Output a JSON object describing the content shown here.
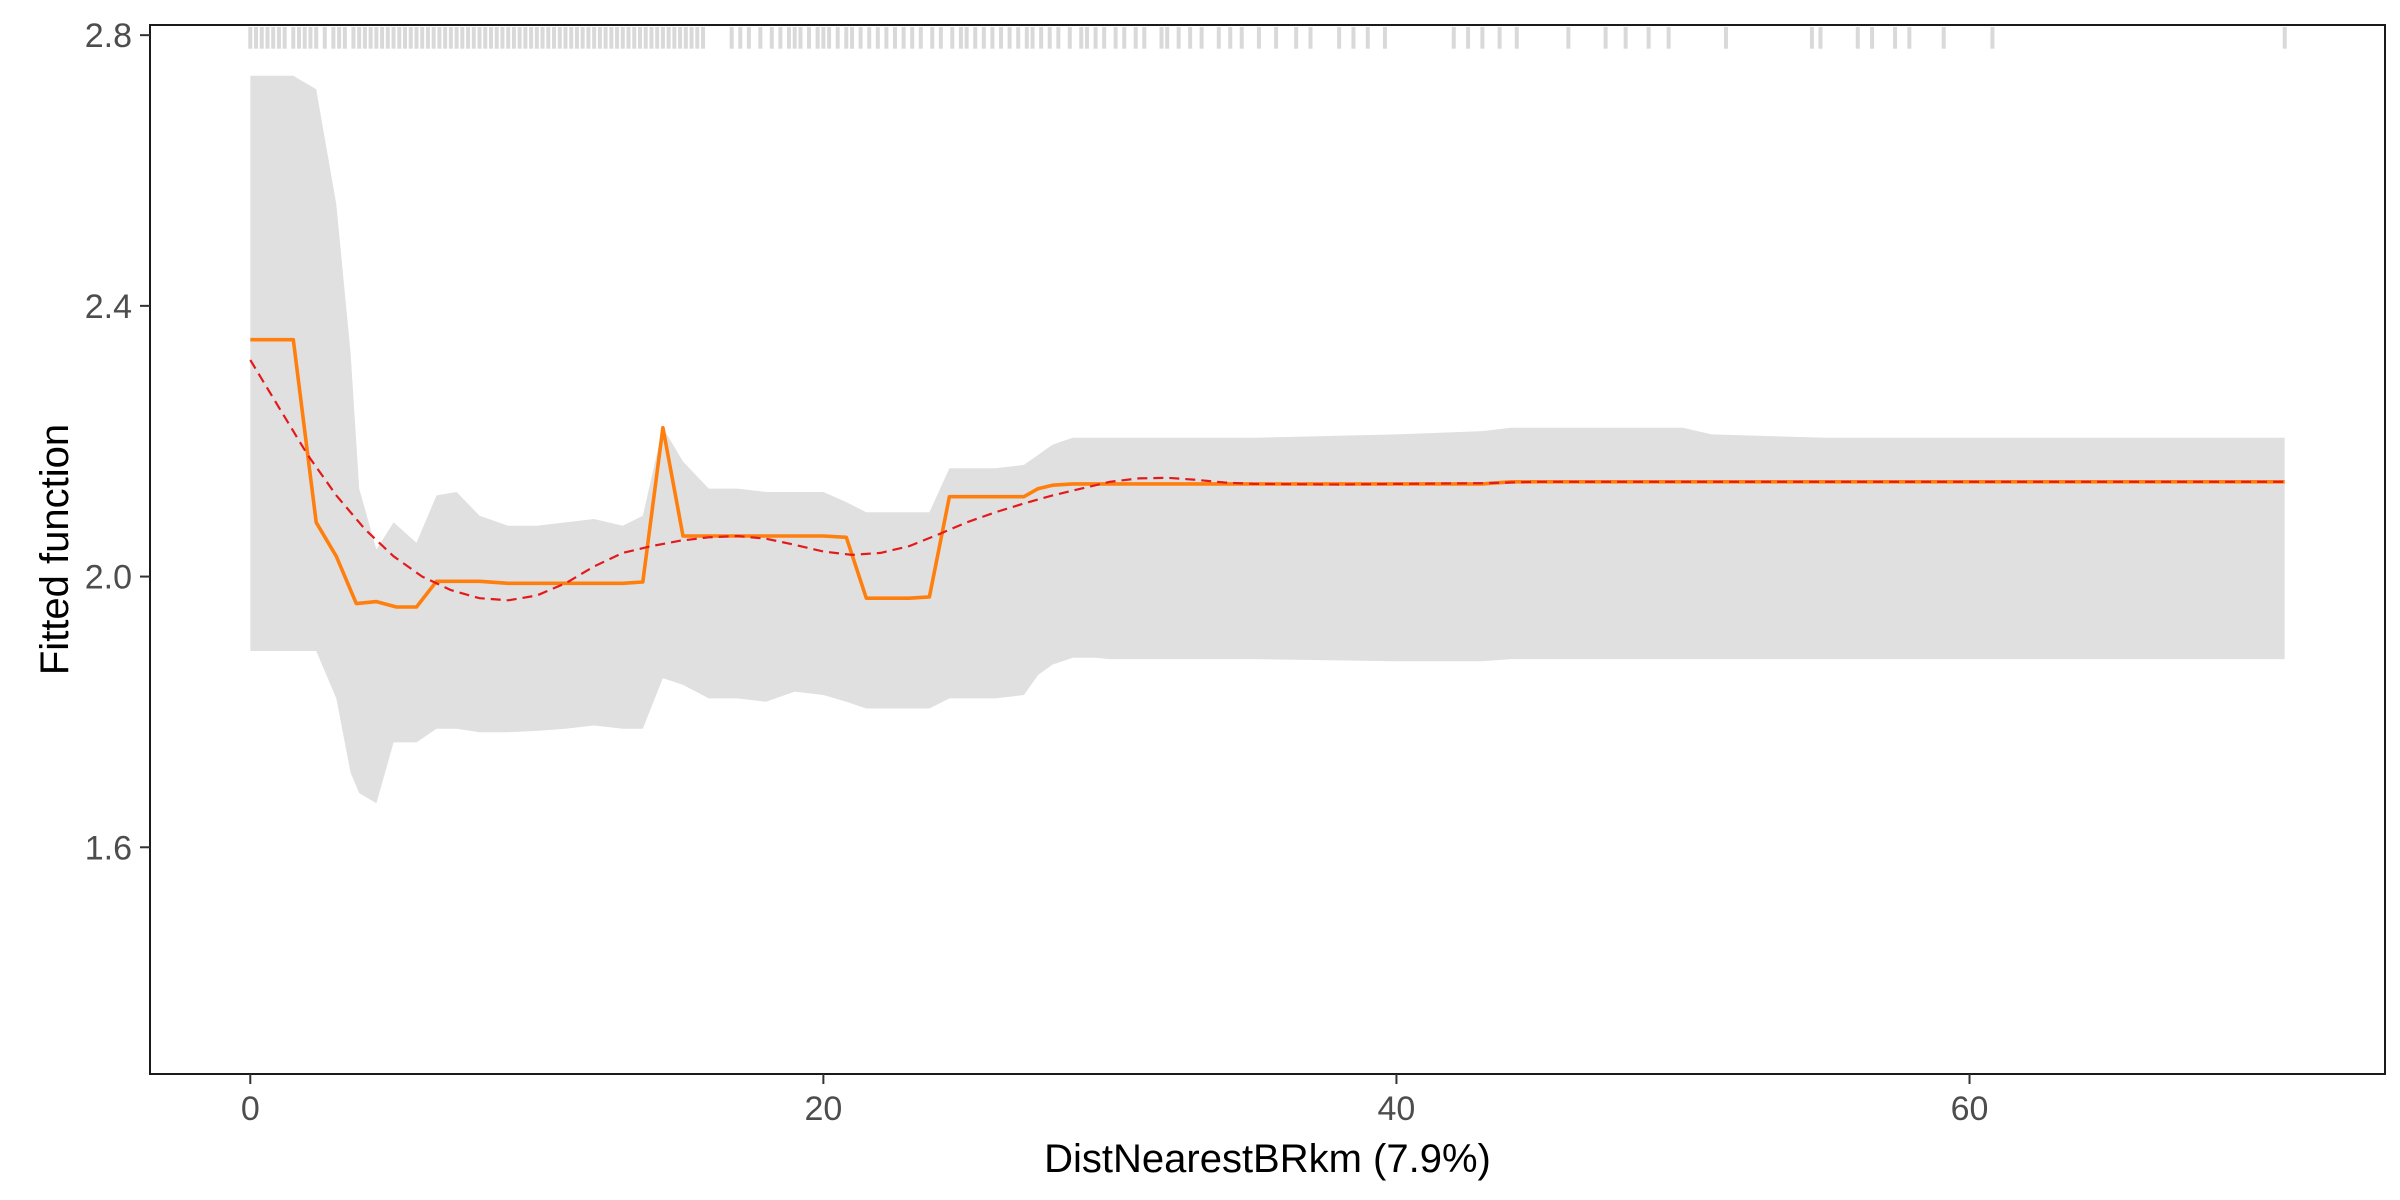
{
  "chart_data": {
    "type": "line",
    "title": "",
    "xlabel": "DistNearestBRkm  (7.9%)",
    "ylabel": "Fitted function",
    "xlim": [
      -3.5,
      74.5
    ],
    "ylim": [
      1.265,
      2.815
    ],
    "x_ticks": [
      0,
      20,
      40,
      60
    ],
    "y_ticks": [
      1.6,
      2.0,
      2.4,
      2.8
    ],
    "x_tick_labels": [
      "0",
      "20",
      "40",
      "60"
    ],
    "y_tick_labels": [
      "1.6",
      "2.0",
      "2.4",
      "2.8"
    ],
    "grid": false,
    "legend": "none",
    "colors": {
      "fitted": "#ff7f0e",
      "smooth": "#e31a1c",
      "band": "#e0e0e0",
      "rug": "#d9d9d9",
      "frame": "#1a1a1a"
    },
    "series": [
      {
        "style": "solid",
        "x": [
          0,
          1.5,
          2.3,
          3.0,
          3.7,
          4.4,
          5.1,
          5.8,
          6.5,
          7.2,
          8.0,
          9.0,
          10.0,
          11.0,
          12.0,
          13.0,
          13.7,
          14.4,
          15.1,
          16.0,
          17.0,
          18.0,
          19.0,
          20.0,
          20.8,
          21.5,
          22.3,
          23.0,
          23.7,
          24.4,
          25.1,
          26.0,
          27.0,
          27.5,
          28.0,
          28.7,
          29.5,
          30.0,
          35.0,
          40.0,
          43.0,
          44.0,
          50.0,
          55.0,
          60.0,
          65.0,
          71.0
        ],
        "y": [
          2.35,
          2.35,
          2.08,
          2.03,
          1.96,
          1.963,
          1.955,
          1.955,
          1.993,
          1.993,
          1.993,
          1.99,
          1.99,
          1.99,
          1.99,
          1.99,
          1.992,
          2.22,
          2.06,
          2.06,
          2.06,
          2.06,
          2.06,
          2.06,
          2.058,
          1.968,
          1.968,
          1.968,
          1.97,
          2.118,
          2.118,
          2.118,
          2.118,
          2.13,
          2.135,
          2.137,
          2.137,
          2.137,
          2.137,
          2.137,
          2.137,
          2.14,
          2.14,
          2.14,
          2.14,
          2.14,
          2.14
        ]
      },
      {
        "style": "dashed",
        "x": [
          0,
          1,
          2,
          3,
          4,
          5,
          6,
          7,
          8,
          9,
          10,
          11,
          12,
          13,
          14,
          15,
          16,
          17,
          18,
          19,
          20,
          21,
          22,
          23,
          24,
          25,
          26,
          27,
          28,
          29,
          30,
          31,
          32,
          33,
          34,
          35,
          38,
          40,
          43,
          45,
          50,
          55,
          60,
          65,
          71
        ],
        "y": [
          2.32,
          2.25,
          2.18,
          2.12,
          2.07,
          2.03,
          2.0,
          1.98,
          1.968,
          1.965,
          1.972,
          1.99,
          2.015,
          2.035,
          2.045,
          2.053,
          2.058,
          2.06,
          2.056,
          2.047,
          2.037,
          2.032,
          2.035,
          2.045,
          2.062,
          2.08,
          2.095,
          2.108,
          2.12,
          2.13,
          2.14,
          2.145,
          2.146,
          2.143,
          2.139,
          2.137,
          2.136,
          2.137,
          2.138,
          2.14,
          2.14,
          2.14,
          2.14,
          2.14,
          2.14
        ]
      }
    ],
    "band": {
      "x": [
        0,
        1.5,
        2.3,
        3.0,
        3.5,
        3.8,
        4.4,
        5.0,
        5.8,
        6.5,
        7.2,
        8.0,
        9.0,
        10.0,
        11.0,
        12.0,
        13.0,
        13.7,
        14.4,
        15.1,
        16.0,
        17.0,
        18.0,
        19.0,
        20.0,
        20.8,
        21.5,
        22.3,
        23.0,
        23.7,
        24.4,
        25.1,
        26.0,
        27.0,
        27.5,
        28.0,
        28.7,
        29.5,
        30.0,
        35.0,
        40.0,
        43.0,
        44.0,
        50.0,
        51.0,
        55.0,
        60.0,
        65.0,
        71.0
      ],
      "upper": [
        2.74,
        2.74,
        2.72,
        2.55,
        2.33,
        2.13,
        2.04,
        2.08,
        2.05,
        2.12,
        2.125,
        2.09,
        2.075,
        2.075,
        2.08,
        2.085,
        2.075,
        2.09,
        2.22,
        2.17,
        2.13,
        2.13,
        2.125,
        2.125,
        2.125,
        2.11,
        2.095,
        2.095,
        2.095,
        2.095,
        2.16,
        2.16,
        2.16,
        2.165,
        2.18,
        2.195,
        2.205,
        2.205,
        2.205,
        2.205,
        2.21,
        2.215,
        2.22,
        2.22,
        2.21,
        2.205,
        2.205,
        2.205,
        2.205
      ],
      "lower": [
        1.89,
        1.89,
        1.89,
        1.82,
        1.71,
        1.68,
        1.665,
        1.755,
        1.755,
        1.775,
        1.775,
        1.77,
        1.77,
        1.772,
        1.775,
        1.78,
        1.775,
        1.775,
        1.85,
        1.84,
        1.82,
        1.82,
        1.815,
        1.83,
        1.825,
        1.815,
        1.805,
        1.805,
        1.805,
        1.805,
        1.82,
        1.82,
        1.82,
        1.825,
        1.855,
        1.87,
        1.88,
        1.88,
        1.878,
        1.878,
        1.875,
        1.875,
        1.878,
        1.878,
        1.878,
        1.878,
        1.878,
        1.878,
        1.878
      ]
    },
    "rug_x": [
      0.0,
      0.2,
      0.4,
      0.6,
      0.8,
      1.0,
      1.2,
      1.5,
      1.7,
      1.9,
      2.1,
      2.3,
      2.6,
      2.9,
      3.1,
      3.3,
      3.6,
      3.8,
      4.0,
      4.2,
      4.4,
      4.6,
      4.8,
      5.0,
      5.2,
      5.4,
      5.6,
      5.8,
      6.0,
      6.2,
      6.4,
      6.6,
      6.8,
      7.0,
      7.2,
      7.4,
      7.6,
      7.8,
      8.0,
      8.2,
      8.4,
      8.6,
      8.8,
      9.0,
      9.2,
      9.4,
      9.6,
      9.8,
      10.0,
      10.2,
      10.4,
      10.6,
      10.8,
      11.0,
      11.2,
      11.4,
      11.6,
      11.8,
      12.0,
      12.2,
      12.4,
      12.6,
      12.8,
      13.0,
      13.2,
      13.4,
      13.6,
      13.8,
      14.0,
      14.2,
      14.4,
      14.6,
      14.8,
      15.0,
      15.2,
      15.4,
      15.6,
      15.8,
      16.8,
      17.1,
      17.4,
      17.8,
      18.2,
      18.5,
      18.8,
      19.0,
      19.2,
      19.5,
      19.8,
      20.0,
      20.2,
      20.5,
      20.8,
      21.0,
      21.3,
      21.6,
      21.9,
      22.2,
      22.5,
      22.8,
      23.1,
      23.4,
      23.8,
      24.1,
      24.5,
      24.8,
      25.0,
      25.3,
      25.6,
      25.9,
      26.2,
      26.5,
      26.8,
      27.1,
      27.3,
      27.6,
      27.9,
      28.2,
      28.6,
      29.0,
      29.2,
      29.5,
      29.8,
      30.2,
      30.5,
      30.9,
      31.2,
      31.8,
      32.0,
      32.4,
      32.8,
      33.2,
      33.8,
      34.2,
      34.6,
      35.2,
      35.8,
      36.5,
      37.0,
      38.0,
      38.5,
      39.0,
      39.6,
      42.0,
      42.5,
      43.0,
      43.6,
      44.2,
      46.0,
      47.3,
      48.0,
      48.8,
      49.5,
      51.5,
      54.5,
      54.8,
      56.1,
      56.6,
      57.4,
      57.9,
      59.1,
      60.8,
      71.0
    ]
  }
}
